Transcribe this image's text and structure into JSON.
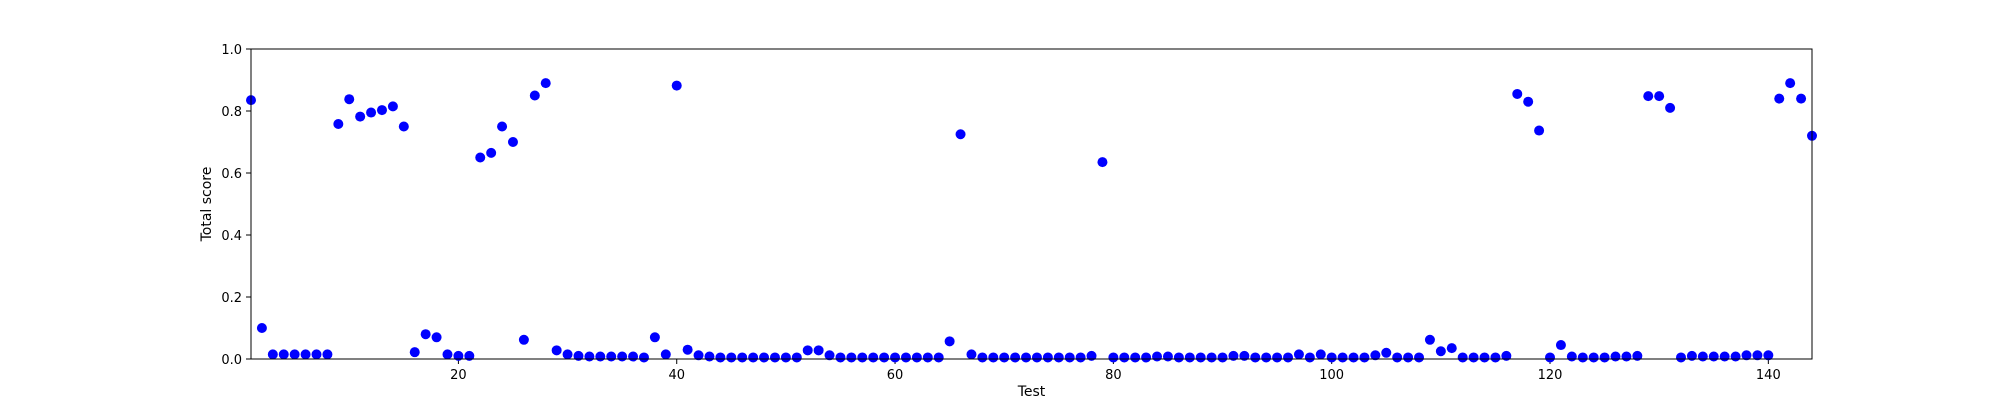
{
  "chart_data": {
    "type": "scatter",
    "title": "",
    "xlabel": "Test",
    "ylabel": "Total score",
    "xlim": [
      1,
      144
    ],
    "ylim": [
      0.0,
      1.0
    ],
    "grid": false,
    "legend": "none",
    "marker_color": "#0000ff",
    "x_ticks": [
      20,
      40,
      60,
      80,
      100,
      120,
      140
    ],
    "y_ticks": [
      0.0,
      0.2,
      0.4,
      0.6,
      0.8,
      1.0
    ],
    "x_tick_labels": [
      "20",
      "40",
      "60",
      "80",
      "100",
      "120",
      "140"
    ],
    "y_tick_labels": [
      "0.0",
      "0.2",
      "0.4",
      "0.6",
      "0.8",
      "1.0"
    ],
    "series": [
      {
        "x": [
          1,
          2,
          3,
          4,
          5,
          6,
          7,
          8,
          9,
          10,
          11,
          12,
          13,
          14,
          15,
          16,
          17,
          18,
          19,
          20,
          21,
          22,
          23,
          24,
          25,
          26,
          27,
          28,
          29,
          30,
          31,
          32,
          33,
          34,
          35,
          36,
          37,
          38,
          39,
          40,
          41,
          42,
          43,
          44,
          45,
          46,
          47,
          48,
          49,
          50,
          51,
          52,
          53,
          54,
          55,
          56,
          57,
          58,
          59,
          60,
          61,
          62,
          63,
          64,
          65,
          66,
          67,
          68,
          69,
          70,
          71,
          72,
          73,
          74,
          75,
          76,
          77,
          78,
          79,
          80,
          81,
          82,
          83,
          84,
          85,
          86,
          87,
          88,
          89,
          90,
          91,
          92,
          93,
          94,
          95,
          96,
          97,
          98,
          99,
          100,
          101,
          102,
          103,
          104,
          105,
          106,
          107,
          108,
          109,
          110,
          111,
          112,
          113,
          114,
          115,
          116,
          117,
          118,
          119,
          120,
          121,
          122,
          123,
          124,
          125,
          126,
          127,
          128,
          129,
          130,
          131,
          132,
          133,
          134,
          135,
          136,
          137,
          138,
          139,
          140,
          141,
          142,
          143,
          144
        ],
        "y": [
          0.835,
          0.1,
          0.015,
          0.015,
          0.015,
          0.015,
          0.015,
          0.015,
          0.758,
          0.838,
          0.782,
          0.795,
          0.803,
          0.815,
          0.75,
          0.022,
          0.08,
          0.07,
          0.015,
          0.01,
          0.01,
          0.65,
          0.665,
          0.75,
          0.7,
          0.062,
          0.85,
          0.89,
          0.028,
          0.015,
          0.01,
          0.008,
          0.008,
          0.008,
          0.008,
          0.008,
          0.005,
          0.07,
          0.015,
          0.882,
          0.03,
          0.012,
          0.008,
          0.005,
          0.005,
          0.005,
          0.005,
          0.005,
          0.005,
          0.005,
          0.005,
          0.028,
          0.028,
          0.012,
          0.005,
          0.005,
          0.005,
          0.005,
          0.005,
          0.005,
          0.005,
          0.005,
          0.005,
          0.005,
          0.057,
          0.725,
          0.015,
          0.005,
          0.005,
          0.005,
          0.005,
          0.005,
          0.005,
          0.005,
          0.005,
          0.005,
          0.005,
          0.01,
          0.635,
          0.005,
          0.005,
          0.005,
          0.005,
          0.008,
          0.008,
          0.005,
          0.005,
          0.005,
          0.005,
          0.005,
          0.01,
          0.01,
          0.005,
          0.005,
          0.005,
          0.005,
          0.015,
          0.005,
          0.015,
          0.005,
          0.005,
          0.005,
          0.005,
          0.012,
          0.02,
          0.005,
          0.005,
          0.005,
          0.062,
          0.025,
          0.035,
          0.005,
          0.005,
          0.005,
          0.005,
          0.01,
          0.855,
          0.83,
          0.737,
          0.005,
          0.045,
          0.008,
          0.005,
          0.005,
          0.005,
          0.008,
          0.008,
          0.01,
          0.848,
          0.848,
          0.81,
          0.005,
          0.01,
          0.008,
          0.008,
          0.008,
          0.008,
          0.012,
          0.012,
          0.012,
          0.84,
          0.89,
          0.84,
          0.72
        ]
      }
    ]
  }
}
